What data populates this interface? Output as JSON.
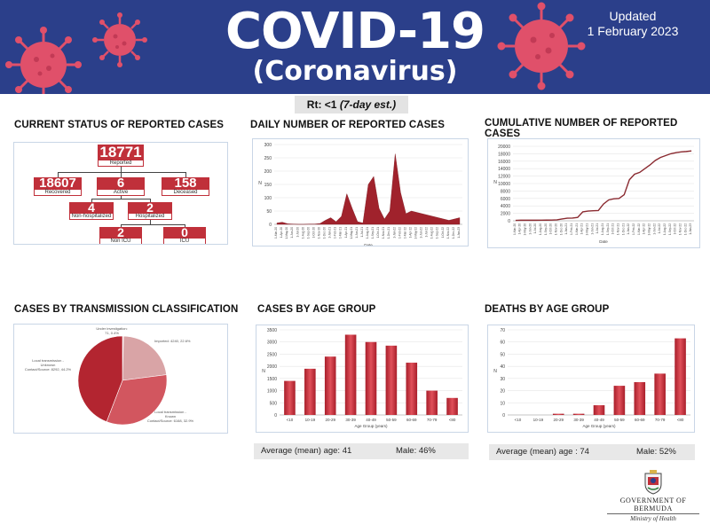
{
  "header": {
    "title": "COVID-19",
    "subtitle": "(Coronavirus)",
    "updated_label": "Updated",
    "updated_date": "1 February 2023"
  },
  "rt": {
    "label": "Rt: <1",
    "note": "(7-day est.)"
  },
  "status": {
    "title": "CURRENT STATUS OF REPORTED CASES",
    "reported": {
      "value": "18771",
      "label": "Reported"
    },
    "recovered": {
      "value": "18607",
      "label": "Recovered"
    },
    "active": {
      "value": "6",
      "label": "Active"
    },
    "deceased": {
      "value": "158",
      "label": "Deceased"
    },
    "non_hospitalized": {
      "value": "4",
      "label": "Non-hospitalized"
    },
    "hospitalized": {
      "value": "2",
      "label": "Hospitalized"
    },
    "non_icu": {
      "value": "2",
      "label": "Non ICU"
    },
    "icu": {
      "value": "0",
      "label": "ICU"
    }
  },
  "daily": {
    "title": "DAILY NUMBER OF REPORTED CASES"
  },
  "cumulative": {
    "title": "CUMULATIVE NUMBER OF REPORTED CASES"
  },
  "transmission": {
    "title": "CASES BY TRANSMISSION CLASSIFICATION"
  },
  "age": {
    "title": "CASES BY AGE GROUP",
    "mean_label": "Average (mean) age: 41",
    "male_label": "Male: 46%"
  },
  "deaths": {
    "title": "DEATHS BY AGE GROUP",
    "mean_label": "Average (mean) age : 74",
    "male_label": "Male: 52%"
  },
  "footer": {
    "gov": "GOVERNMENT OF BERMUDA",
    "ministry": "Ministry of Health"
  },
  "colors": {
    "banner": "#2b3f8a",
    "accent": "#c0303a",
    "virus": "#e0506a"
  },
  "chart_data": [
    {
      "type": "area",
      "id": "daily",
      "title": "DAILY NUMBER OF REPORTED CASES",
      "xlabel": "Date",
      "ylabel": "N",
      "ylim": [
        0,
        300
      ],
      "yticks": [
        0,
        50,
        100,
        150,
        200,
        250,
        300
      ],
      "x": [
        "1-Mar-20",
        "1-Apr-20",
        "1-May-20",
        "1-Jun-20",
        "1-Jul-20",
        "1-Aug-20",
        "1-Sep-20",
        "1-Oct-20",
        "1-Nov-20",
        "1-Dec-20",
        "1-Jan-21",
        "1-Feb-21",
        "1-Mar-21",
        "1-Apr-21",
        "1-May-21",
        "1-Jun-21",
        "1-Jul-21",
        "1-Aug-21",
        "1-Sep-21",
        "1-Oct-21",
        "1-Nov-21",
        "1-Dec-21",
        "1-Jan-22",
        "1-Feb-22",
        "1-Mar-22",
        "1-Apr-22",
        "1-May-22",
        "1-Jun-22",
        "1-Jul-22",
        "1-Aug-22",
        "1-Sep-22",
        "1-Oct-22",
        "1-Nov-22",
        "1-Dec-22",
        "1-Jan-23"
      ],
      "values": [
        5,
        8,
        2,
        1,
        0,
        0,
        1,
        1,
        3,
        15,
        25,
        10,
        30,
        115,
        60,
        10,
        5,
        150,
        180,
        60,
        20,
        50,
        265,
        120,
        40,
        50,
        45,
        40,
        35,
        30,
        25,
        20,
        15,
        20,
        25
      ]
    },
    {
      "type": "line",
      "id": "cumulative",
      "title": "CUMULATIVE NUMBER OF REPORTED CASES",
      "xlabel": "Date",
      "ylabel": "N",
      "ylim": [
        0,
        20000
      ],
      "yticks": [
        0,
        2000,
        4000,
        6000,
        8000,
        10000,
        12000,
        14000,
        16000,
        18000,
        20000
      ],
      "x": [
        "1-Mar-20",
        "1-Apr-20",
        "1-May-20",
        "1-Jun-20",
        "1-Jul-20",
        "1-Aug-20",
        "1-Sep-20",
        "1-Oct-20",
        "1-Nov-20",
        "1-Dec-20",
        "1-Jan-21",
        "1-Feb-21",
        "1-Mar-21",
        "1-Apr-21",
        "1-May-21",
        "1-Jun-21",
        "1-Jul-21",
        "1-Aug-21",
        "1-Sep-21",
        "1-Oct-21",
        "1-Nov-21",
        "1-Dec-21",
        "1-Jan-22",
        "1-Feb-22",
        "1-Mar-22",
        "1-Apr-22",
        "1-May-22",
        "1-Jun-22",
        "1-Jul-22",
        "1-Aug-22",
        "1-Sep-22",
        "1-Oct-22",
        "1-Nov-22",
        "1-Dec-22",
        "1-Jan-23"
      ],
      "values": [
        100,
        150,
        150,
        150,
        150,
        160,
        180,
        190,
        250,
        500,
        700,
        720,
        900,
        2400,
        2600,
        2700,
        2750,
        4500,
        5600,
        5900,
        6000,
        7000,
        11000,
        12500,
        13000,
        14000,
        15000,
        16200,
        17000,
        17500,
        18000,
        18300,
        18500,
        18600,
        18771
      ]
    },
    {
      "type": "pie",
      "id": "transmission",
      "title": "CASES BY TRANSMISSION CLASSIFICATION",
      "slices": [
        {
          "label": "Under investigation: 71, 0.4%",
          "value": 71,
          "color": "#f2c9cb"
        },
        {
          "label": "Imported: 4240, 22.6%",
          "value": 4240,
          "color": "#d9a4a6"
        },
        {
          "label": "Local transmission - Known Contact/Source: 6168, 32.9%",
          "value": 6168,
          "color": "#d2565f"
        },
        {
          "label": "Local transmission - Unknown Contact/Source: 8292, 44.2%",
          "value": 8292,
          "color": "#b32530"
        }
      ]
    },
    {
      "type": "bar",
      "id": "age",
      "title": "CASES BY AGE GROUP",
      "xlabel": "Age Group (years)",
      "ylabel": "N",
      "ylim": [
        0,
        3500
      ],
      "yticks": [
        0,
        500,
        1000,
        1500,
        2000,
        2500,
        3000,
        3500
      ],
      "categories": [
        "<10",
        "10-19",
        "20-29",
        "30-39",
        "40-49",
        "50-59",
        "60-69",
        "70-79",
        "<80"
      ],
      "values": [
        1400,
        1900,
        2400,
        3300,
        3000,
        2850,
        2150,
        1000,
        700
      ]
    },
    {
      "type": "bar",
      "id": "deaths",
      "title": "DEATHS BY AGE GROUP",
      "xlabel": "Age Group (years)",
      "ylabel": "N",
      "ylim": [
        0,
        70
      ],
      "yticks": [
        0,
        10,
        20,
        30,
        40,
        50,
        60,
        70
      ],
      "categories": [
        "<10",
        "10-19",
        "20-29",
        "30-39",
        "40-49",
        "50-59",
        "60-69",
        "70-79",
        "<80"
      ],
      "values": [
        0,
        0,
        1,
        1,
        8,
        24,
        27,
        34,
        63
      ]
    }
  ]
}
